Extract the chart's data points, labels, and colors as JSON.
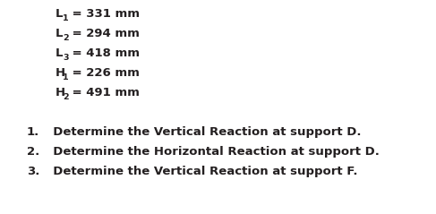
{
  "background_color": "#ffffff",
  "params": [
    {
      "label": "L",
      "sub": "1",
      "value": "= 331 mm"
    },
    {
      "label": "L",
      "sub": "2",
      "value": "= 294 mm"
    },
    {
      "label": "L",
      "sub": "3",
      "value": "= 418 mm"
    },
    {
      "label": "H",
      "sub": "1",
      "value": "= 226 mm"
    },
    {
      "label": "H",
      "sub": "2",
      "value": "= 491 mm"
    }
  ],
  "questions": [
    "Determine the Vertical Reaction at support D.",
    "Determine the Horizontal Reaction at support D.",
    "Determine the Vertical Reaction at support F."
  ],
  "text_color": "#231f20",
  "fontsize_param": 9.5,
  "fontsize_question": 9.5
}
